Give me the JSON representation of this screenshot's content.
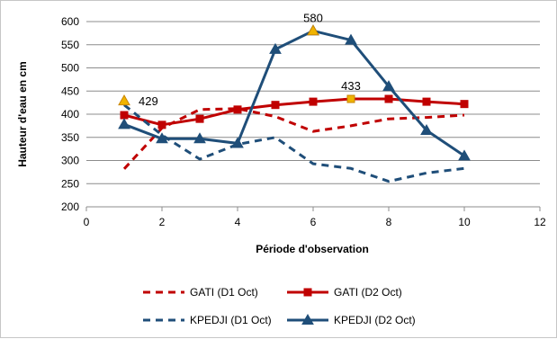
{
  "chart_data": {
    "type": "line",
    "xlabel": "Période d'observation",
    "ylabel": "Hauteur d'eau en cm",
    "xlim": [
      0,
      12
    ],
    "ylim": [
      200,
      600
    ],
    "x_ticks": [
      0,
      2,
      4,
      6,
      8,
      10,
      12
    ],
    "y_ticks": [
      200,
      250,
      300,
      350,
      400,
      450,
      500,
      550,
      600
    ],
    "grid": "horizontal",
    "legend_position": "bottom",
    "series": [
      {
        "name": "GATI (D1 Oct)",
        "color": "#c00000",
        "style": "dashed",
        "marker": "none",
        "x": [
          1,
          2,
          3,
          4,
          5,
          6,
          7,
          8,
          9,
          10
        ],
        "y": [
          282,
          370,
          410,
          412,
          395,
          363,
          375,
          390,
          393,
          398
        ]
      },
      {
        "name": "GATI (D2 Oct)",
        "color": "#c00000",
        "style": "solid",
        "marker": "square",
        "x": [
          1,
          2,
          3,
          4,
          5,
          6,
          7,
          8,
          9,
          10
        ],
        "y": [
          398,
          377,
          390,
          410,
          420,
          427,
          433,
          433,
          427,
          422
        ]
      },
      {
        "name": "KPEDJI (D1 Oct)",
        "color": "#1f4e79",
        "style": "dashed",
        "marker": "none",
        "x": [
          1,
          2,
          3,
          4,
          5,
          6,
          7,
          8,
          9,
          10
        ],
        "y": [
          420,
          355,
          303,
          335,
          350,
          293,
          283,
          255,
          273,
          283
        ]
      },
      {
        "name": "KPEDJI (D2 Oct)",
        "color": "#1f4e79",
        "style": "solid",
        "marker": "triangle",
        "x": [
          1,
          2,
          3,
          4,
          5,
          6,
          7,
          8,
          9,
          10
        ],
        "y": [
          378,
          347,
          347,
          337,
          540,
          580,
          560,
          460,
          365,
          310
        ]
      }
    ],
    "annotations": [
      {
        "label": "429",
        "x": 1,
        "y": 429,
        "marker": "triangle",
        "color": "#f0b400"
      },
      {
        "label": "580",
        "x": 6,
        "y": 580,
        "marker": "triangle",
        "color": "#f0b400"
      },
      {
        "label": "433",
        "x": 7,
        "y": 433,
        "marker": "square",
        "color": "#f0b400"
      }
    ]
  }
}
